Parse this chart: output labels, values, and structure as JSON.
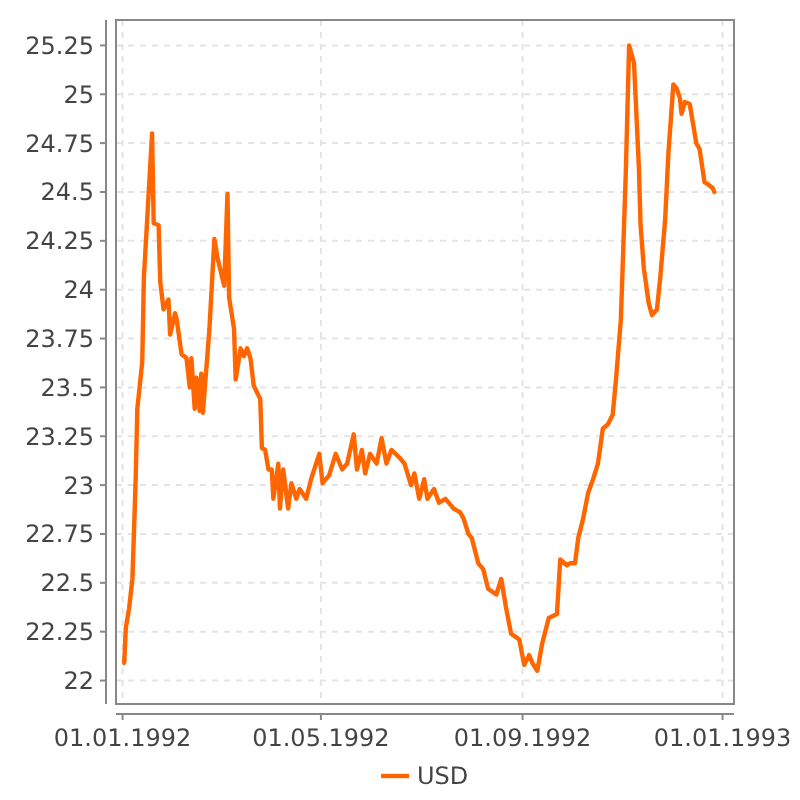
{
  "chart_data": {
    "type": "line",
    "x": [
      "1992-01-02",
      "1992-01-03",
      "1992-01-05",
      "1992-01-07",
      "1992-01-08",
      "1992-01-09",
      "1992-01-10",
      "1992-01-13",
      "1992-01-14",
      "1992-01-19",
      "1992-01-20",
      "1992-01-23",
      "1992-01-24",
      "1992-01-26",
      "1992-01-29",
      "1992-01-30",
      "1992-02-02",
      "1992-02-03",
      "1992-02-06",
      "1992-02-09",
      "1992-02-11",
      "1992-02-12",
      "1992-02-14",
      "1992-02-15",
      "1992-02-17",
      "1992-02-18",
      "1992-02-19",
      "1992-02-23",
      "1992-02-26",
      "1992-02-28",
      "1992-03-03",
      "1992-03-05",
      "1992-03-06",
      "1992-03-09",
      "1992-03-10",
      "1992-03-13",
      "1992-03-15",
      "1992-03-17",
      "1992-03-19",
      "1992-03-21",
      "1992-03-25",
      "1992-03-26",
      "1992-03-28",
      "1992-03-30",
      "1992-04-01",
      "1992-04-02",
      "1992-04-05",
      "1992-04-06",
      "1992-04-08",
      "1992-04-11",
      "1992-04-13",
      "1992-04-16",
      "1992-04-18",
      "1992-04-22",
      "1992-04-25",
      "1992-04-30",
      "1992-05-02",
      "1992-05-06",
      "1992-05-10",
      "1992-05-14",
      "1992-05-17",
      "1992-05-21",
      "1992-05-23",
      "1992-05-26",
      "1992-05-28",
      "1992-05-31",
      "1992-06-04",
      "1992-06-07",
      "1992-06-10",
      "1992-06-13",
      "1992-06-18",
      "1992-06-21",
      "1992-06-25",
      "1992-06-27",
      "1992-06-30",
      "1992-07-03",
      "1992-07-05",
      "1992-07-09",
      "1992-07-12",
      "1992-07-16",
      "1992-07-21",
      "1992-07-25",
      "1992-07-27",
      "1992-07-30",
      "1992-08-01",
      "1992-08-05",
      "1992-08-08",
      "1992-08-11",
      "1992-08-16",
      "1992-08-19",
      "1992-08-22",
      "1992-08-25",
      "1992-08-30",
      "1992-09-02",
      "1992-09-05",
      "1992-09-07",
      "1992-09-10",
      "1992-09-13",
      "1992-09-17",
      "1992-09-22",
      "1992-09-24",
      "1992-09-28",
      "1992-09-30",
      "1992-10-03",
      "1992-10-05",
      "1992-10-08",
      "1992-10-11",
      "1992-10-14",
      "1992-10-17",
      "1992-10-20",
      "1992-10-23",
      "1992-10-26",
      "1992-10-28",
      "1992-10-31",
      "1992-11-03",
      "1992-11-05",
      "1992-11-08",
      "1992-11-09",
      "1992-11-11",
      "1992-11-12",
      "1992-11-14",
      "1992-11-17",
      "1992-11-19",
      "1992-11-22",
      "1992-11-24",
      "1992-11-27",
      "1992-11-29",
      "1992-12-02",
      "1992-12-04",
      "1992-12-06",
      "1992-12-07",
      "1992-12-09",
      "1992-12-12",
      "1992-12-14",
      "1992-12-16",
      "1992-12-18",
      "1992-12-21",
      "1992-12-23",
      "1992-12-26",
      "1992-12-27"
    ],
    "series": [
      {
        "name": "USD",
        "color": "#ff6600",
        "values": [
          22.09,
          22.27,
          22.37,
          22.52,
          22.77,
          23.03,
          23.39,
          23.63,
          24.06,
          24.8,
          24.34,
          24.33,
          24.04,
          23.9,
          23.95,
          23.77,
          23.88,
          23.85,
          23.67,
          23.65,
          23.5,
          23.65,
          23.39,
          23.55,
          23.38,
          23.57,
          23.37,
          23.8,
          24.26,
          24.16,
          24.02,
          24.49,
          23.96,
          23.8,
          23.54,
          23.7,
          23.66,
          23.7,
          23.65,
          23.51,
          23.44,
          23.19,
          23.18,
          23.08,
          23.08,
          22.93,
          23.11,
          22.88,
          23.08,
          22.88,
          23.01,
          22.93,
          22.98,
          22.93,
          23.03,
          23.16,
          23.01,
          23.05,
          23.16,
          23.08,
          23.11,
          23.26,
          23.08,
          23.18,
          23.06,
          23.16,
          23.11,
          23.24,
          23.11,
          23.18,
          23.14,
          23.11,
          23.0,
          23.06,
          22.93,
          23.03,
          22.93,
          22.98,
          22.91,
          22.93,
          22.88,
          22.86,
          22.83,
          22.75,
          22.73,
          22.6,
          22.57,
          22.47,
          22.44,
          22.52,
          22.37,
          22.24,
          22.21,
          22.08,
          22.13,
          22.09,
          22.05,
          22.19,
          22.32,
          22.34,
          22.62,
          22.59,
          22.6,
          22.6,
          22.73,
          22.83,
          22.96,
          23.03,
          23.11,
          23.29,
          23.31,
          23.36,
          23.54,
          23.85,
          24.6,
          25.25,
          25.16,
          24.98,
          24.62,
          24.33,
          24.11,
          23.93,
          23.87,
          23.9,
          24.06,
          24.36,
          24.7,
          25.05,
          25.03,
          24.98,
          24.9,
          24.96,
          24.95,
          24.85,
          24.75,
          24.72,
          24.55,
          24.54,
          24.52,
          24.5
        ]
      }
    ],
    "xlim": [
      "1991-12-28",
      "1993-01-08"
    ],
    "xticks": [
      {
        "value": "1992-01-01",
        "label": "01.01.1992"
      },
      {
        "value": "1992-05-01",
        "label": "01.05.1992"
      },
      {
        "value": "1992-09-01",
        "label": "01.09.1992"
      },
      {
        "value": "1993-01-01",
        "label": "01.01.1993"
      }
    ],
    "ylim": [
      21.88,
      25.38
    ],
    "yticks": [
      22,
      22.25,
      22.5,
      22.75,
      23,
      23.25,
      23.5,
      23.75,
      24,
      24.25,
      24.5,
      24.75,
      25,
      25.25
    ],
    "grid": true,
    "legend": "bottom",
    "marker": "none",
    "line_style": "solid"
  }
}
